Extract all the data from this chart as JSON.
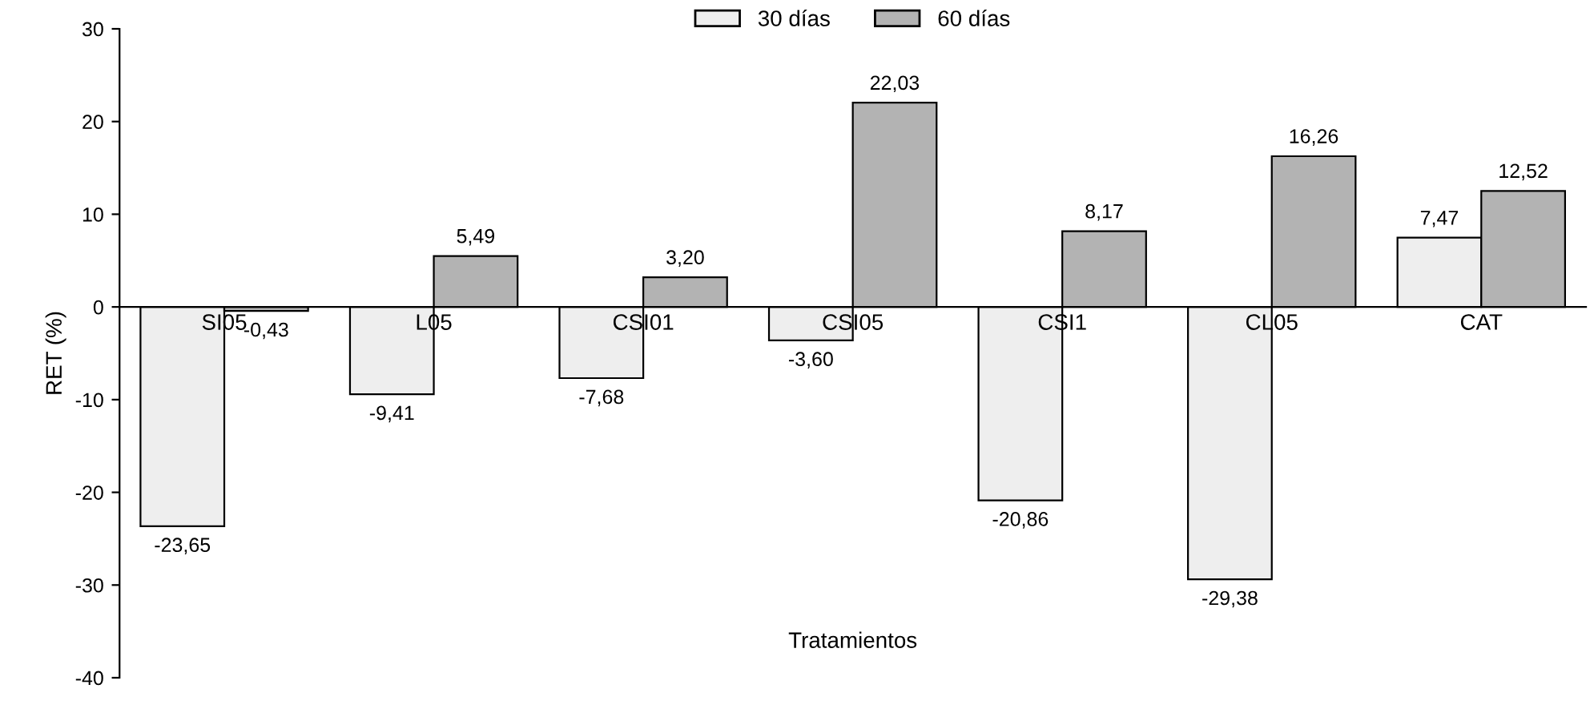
{
  "chart_data": {
    "type": "bar",
    "xlabel": "Tratamientos",
    "ylabel": "RET (%)",
    "categories": [
      "SI05",
      "L05",
      "CSI01",
      "CSI05",
      "CSI1",
      "CL05",
      "CAT"
    ],
    "series": [
      {
        "name": "30 días",
        "color": "#eeeeee",
        "values": [
          -23.65,
          -9.41,
          -7.68,
          -3.6,
          -20.86,
          -29.38,
          7.47
        ],
        "value_labels": [
          "-23,65",
          "-9,41",
          "-7,68",
          "-3,60",
          "-20,86",
          "-29,38",
          "7,47"
        ]
      },
      {
        "name": "60 días",
        "color": "#b3b3b3",
        "values": [
          -0.43,
          5.49,
          3.2,
          22.03,
          8.17,
          16.26,
          12.52
        ],
        "value_labels": [
          "-0,43",
          "5,49",
          "3,20",
          "22,03",
          "8,17",
          "16,26",
          "12,52"
        ]
      }
    ],
    "ylim": [
      -40,
      30
    ],
    "yticks": [
      -40,
      -30,
      -20,
      -10,
      0,
      10,
      20,
      30
    ],
    "grid": false,
    "legend": "top"
  }
}
